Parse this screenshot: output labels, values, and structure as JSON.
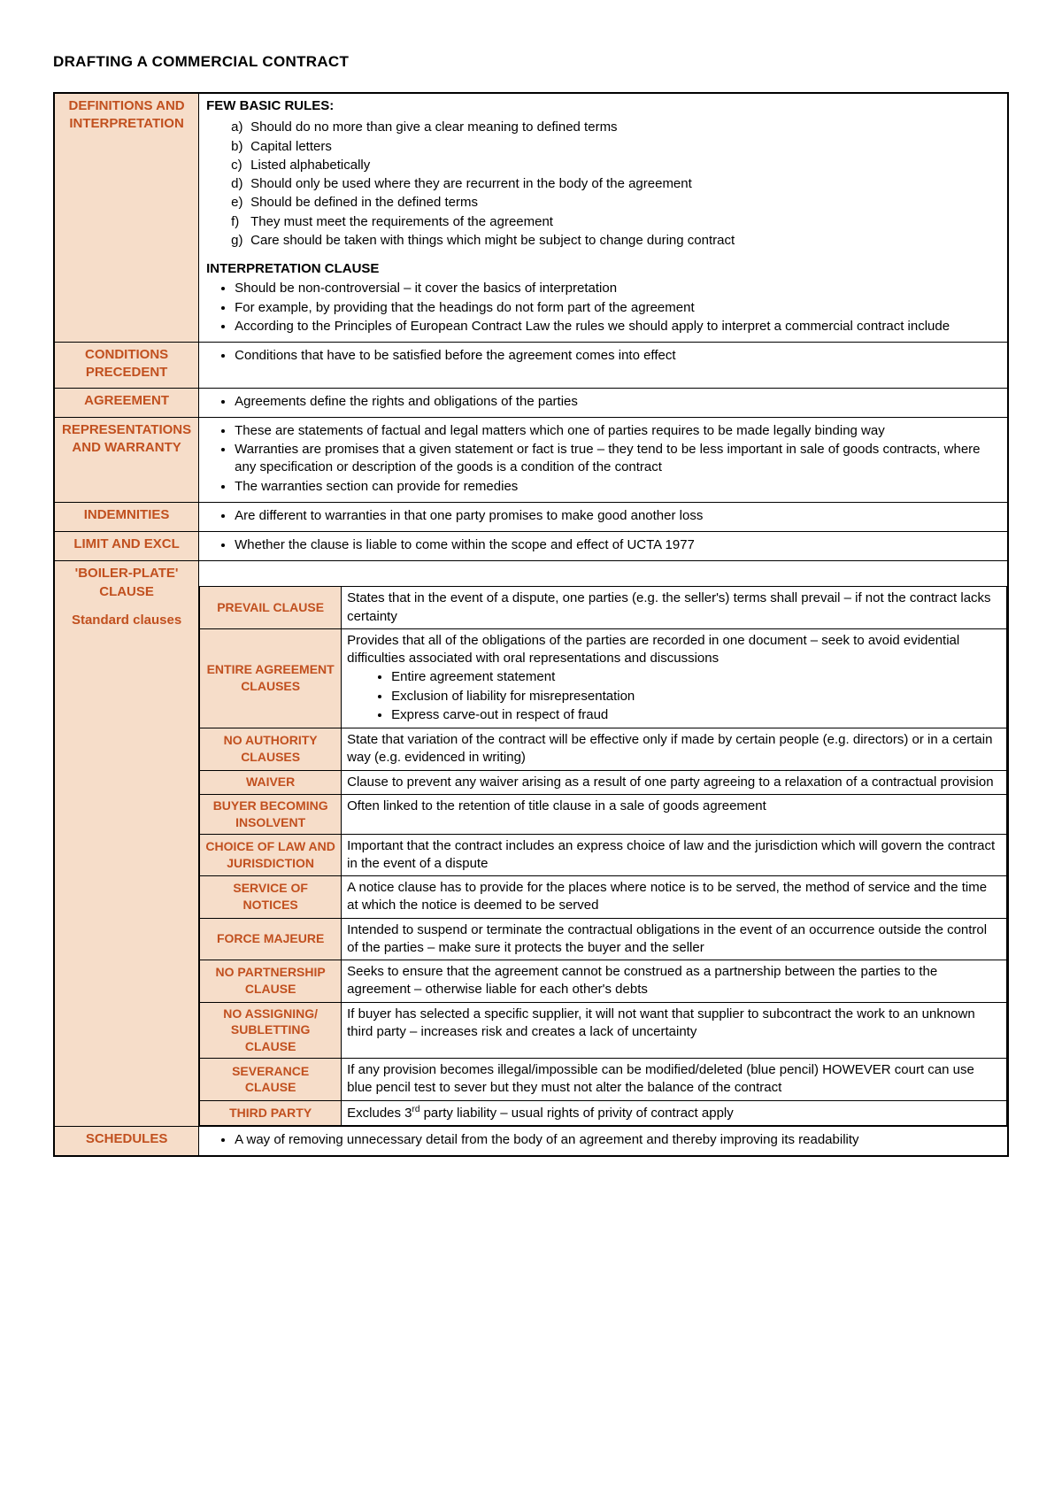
{
  "title": "DRAFTING A COMMERCIAL CONTRACT",
  "colors": {
    "label_text": "#c1501f",
    "label_bg": "#f6ddc9",
    "border": "#000000",
    "page_bg": "#ffffff",
    "text": "#000000"
  },
  "rows": {
    "definitions": {
      "label": "DEFINITIONS AND INTERPRETATION",
      "rules_head": "FEW BASIC RULES:",
      "rules": [
        "Should do no more than give a clear meaning to defined terms",
        "Capital letters",
        "Listed alphabetically",
        "Should only be used where they are recurrent in the body of the agreement",
        "Should be defined in the defined terms",
        "They must meet the requirements of the agreement",
        "Care should be taken with things which might be subject to change during contract"
      ],
      "interp_head": "INTERPRETATION CLAUSE",
      "interp": [
        "Should be non-controversial – it cover the basics of interpretation",
        "For example, by providing that the headings do not form part of the agreement",
        "According to the Principles of European Contract Law the rules we should apply to interpret a commercial contract include"
      ]
    },
    "conditions": {
      "label": "CONDITIONS PRECEDENT",
      "bullets": [
        "Conditions that have to be satisfied before the agreement comes into effect"
      ]
    },
    "agreement": {
      "label": "AGREEMENT",
      "bullets": [
        "Agreements define the rights and obligations of the parties"
      ]
    },
    "reps": {
      "label": "REPRESENTATIONS AND WARRANTY",
      "bullets": [
        "These are statements of factual and legal matters which one of parties requires to be made legally binding way",
        "Warranties are promises that a given statement or fact is true – they tend to be less important in sale of goods contracts, where any specification or description of the goods is a condition of the contract",
        "The warranties section can provide for remedies"
      ]
    },
    "indemnities": {
      "label": "INDEMNITIES",
      "bullets": [
        "Are different to warranties in that one party promises to make good another loss"
      ]
    },
    "limit": {
      "label": "LIMIT AND EXCL",
      "bullets": [
        "Whether the clause is liable to come within the scope and effect of UCTA 1977"
      ]
    },
    "boiler": {
      "label_line1": "'BOILER-PLATE' CLAUSE",
      "label_line2": "Standard clauses",
      "sub": [
        {
          "name": "PREVAIL CLAUSE",
          "text": "States that in the event of a dispute, one parties (e.g. the seller's) terms shall prevail – if not the contract lacks certainty"
        },
        {
          "name": "ENTIRE AGREEMENT CLAUSES",
          "text_intro": "Provides that all of the obligations of the parties are recorded in one document – seek to avoid evidential difficulties associated with oral representations and discussions",
          "sub_bullets": [
            "Entire agreement statement",
            "Exclusion of liability for misrepresentation",
            "Express carve-out in respect of fraud"
          ]
        },
        {
          "name": "NO AUTHORITY CLAUSES",
          "text": "State that variation of the contract will be effective only if made by certain people (e.g. directors) or in a certain way (e.g. evidenced in writing)"
        },
        {
          "name": "WAIVER",
          "text": "Clause to prevent any waiver arising as a result of one party agreeing to a relaxation of a contractual provision"
        },
        {
          "name": "BUYER BECOMING INSOLVENT",
          "text": "Often linked to the retention of title clause in a sale of goods agreement"
        },
        {
          "name": "CHOICE OF LAW AND JURISDICTION",
          "text": "Important that the contract includes an express choice of law and the jurisdiction which will govern the contract in the event of a dispute"
        },
        {
          "name": "SERVICE OF NOTICES",
          "text": "A notice clause has to provide for the places where notice is to be served, the method of service and the time at which the notice is deemed to be served"
        },
        {
          "name": "FORCE MAJEURE",
          "text": "Intended to suspend or terminate the contractual obligations in the event of an occurrence outside the control of the parties – make sure it protects the buyer and the seller"
        },
        {
          "name": "NO PARTNERSHIP CLAUSE",
          "text": "Seeks to ensure that the agreement cannot be construed as a partnership between the parties to the agreement – otherwise liable for each other's debts"
        },
        {
          "name": "NO ASSIGNING/ SUBLETTING CLAUSE",
          "text": "If buyer has selected a specific supplier, it will not want that supplier to subcontract the work to an unknown third party – increases risk and creates a lack of uncertainty"
        },
        {
          "name": "SEVERANCE CLAUSE",
          "text": "If any provision becomes illegal/impossible can be modified/deleted (blue pencil) HOWEVER court can use blue pencil test to sever but they must not alter the balance of the contract"
        },
        {
          "name": "THIRD PARTY",
          "text": "Excludes 3rd party liability – usual rights of privity of contract apply"
        }
      ]
    },
    "schedules": {
      "label": "SCHEDULES",
      "bullets": [
        "A way of removing unnecessary detail from the body of an agreement and thereby improving its readability"
      ]
    }
  }
}
